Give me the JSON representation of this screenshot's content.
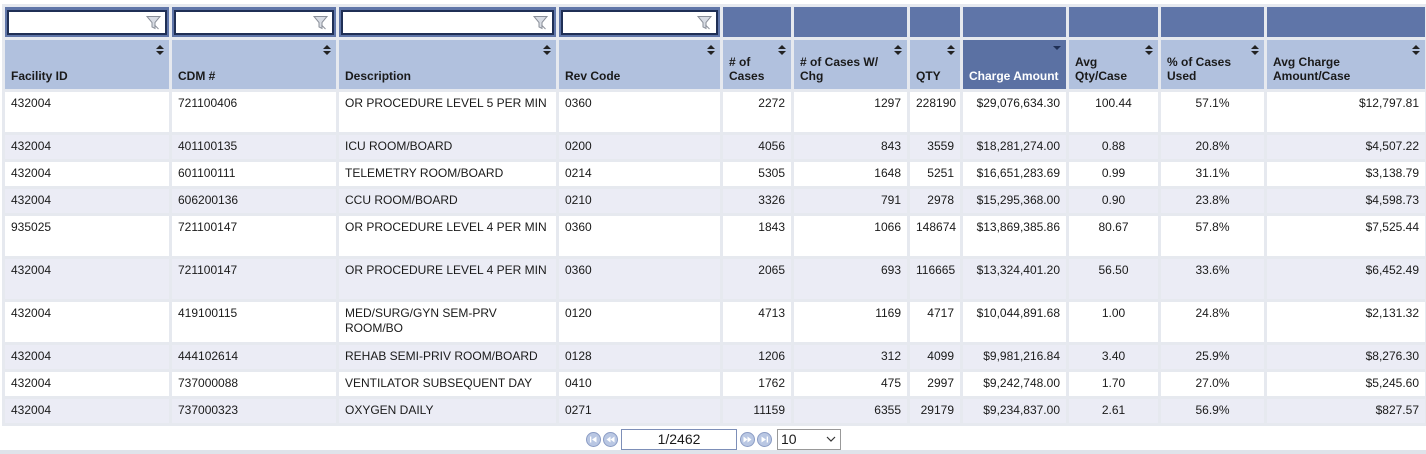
{
  "columns": [
    {
      "label": "Facility ID",
      "filter": true
    },
    {
      "label": "CDM #",
      "filter": true
    },
    {
      "label": "Description",
      "filter": true
    },
    {
      "label": "Rev Code",
      "filter": true
    },
    {
      "label": "# of Cases",
      "filter": false
    },
    {
      "label": "# of Cases W/ Chg",
      "filter": false
    },
    {
      "label": "QTY",
      "filter": false
    },
    {
      "label": "Charge Amount",
      "filter": false,
      "sorted": "desc"
    },
    {
      "label": "Avg Qty/Case",
      "filter": false
    },
    {
      "label": "% of Cases Used",
      "filter": false
    },
    {
      "label": "Avg Charge Amount/Case",
      "filter": false
    }
  ],
  "rows": [
    [
      "432004",
      "721100406",
      "OR PROCEDURE LEVEL 5 PER MIN",
      "0360",
      "2272",
      "1297",
      "228190",
      "$29,076,634.30",
      "100.44",
      "57.1%",
      "$12,797.81"
    ],
    [
      "432004",
      "401100135",
      "ICU ROOM/BOARD",
      "0200",
      "4056",
      "843",
      "3559",
      "$18,281,274.00",
      "0.88",
      "20.8%",
      "$4,507.22"
    ],
    [
      "432004",
      "601100111",
      "TELEMETRY ROOM/BOARD",
      "0214",
      "5305",
      "1648",
      "5251",
      "$16,651,283.69",
      "0.99",
      "31.1%",
      "$3,138.79"
    ],
    [
      "432004",
      "606200136",
      "CCU ROOM/BOARD",
      "0210",
      "3326",
      "791",
      "2978",
      "$15,295,368.00",
      "0.90",
      "23.8%",
      "$4,598.73"
    ],
    [
      "935025",
      "721100147",
      "OR PROCEDURE LEVEL 4 PER MIN",
      "0360",
      "1843",
      "1066",
      "148674",
      "$13,869,385.86",
      "80.67",
      "57.8%",
      "$7,525.44"
    ],
    [
      "432004",
      "721100147",
      "OR PROCEDURE LEVEL 4 PER MIN",
      "0360",
      "2065",
      "693",
      "116665",
      "$13,324,401.20",
      "56.50",
      "33.6%",
      "$6,452.49"
    ],
    [
      "432004",
      "419100115",
      "MED/SURG/GYN SEM-PRV ROOM/BO",
      "0120",
      "4713",
      "1169",
      "4717",
      "$10,044,891.68",
      "1.00",
      "24.8%",
      "$2,131.32"
    ],
    [
      "432004",
      "444102614",
      "REHAB SEMI-PRIV ROOM/BOARD",
      "0128",
      "1206",
      "312",
      "4099",
      "$9,981,216.84",
      "3.40",
      "25.9%",
      "$8,276.30"
    ],
    [
      "432004",
      "737000088",
      "VENTILATOR SUBSEQUENT DAY",
      "0410",
      "1762",
      "475",
      "2997",
      "$9,242,748.00",
      "1.70",
      "27.0%",
      "$5,245.60"
    ],
    [
      "432004",
      "737000323",
      "OXYGEN DAILY",
      "0271",
      "11159",
      "6355",
      "29179",
      "$9,234,837.00",
      "2.61",
      "56.9%",
      "$827.57"
    ]
  ],
  "pager": {
    "page_display": "1/2462",
    "page_size": "10",
    "icons": [
      "first-page-icon",
      "previous-page-icon",
      "next-page-icon",
      "last-page-icon"
    ]
  },
  "colors": {
    "filter_bar": "#5f75a8",
    "header": "#b1c1de",
    "header_sorted": "#5b71a3",
    "row_alt": "#ebecf5"
  }
}
